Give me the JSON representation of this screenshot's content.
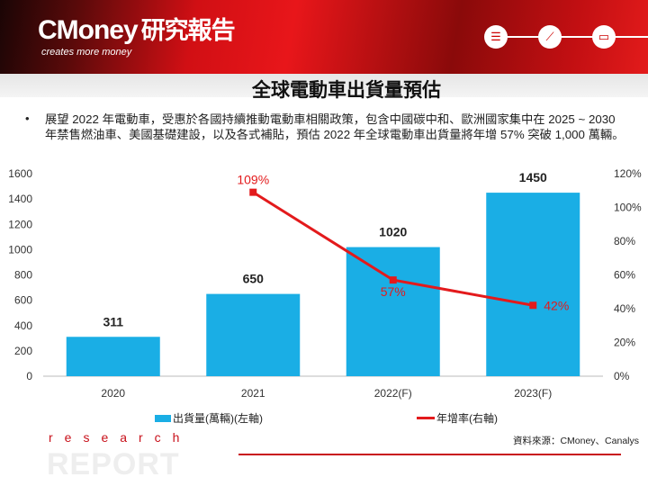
{
  "header": {
    "logo": "CMoney",
    "logo_zh": "研究報告",
    "tagline": "creates more money",
    "icons": [
      "report-icon",
      "trend-chart-icon",
      "monitor-chart-icon"
    ]
  },
  "title": "全球電動車出貨量預估",
  "bullet": "•",
  "paragraph": "展望 2022 年電動車，受惠於各國持續推動電動車相關政策，包含中國碳中和、歐洲國家集中在 2025 ~ 2030 年禁售燃油車、美國基礎建設，以及各式補貼，預估 2022 年全球電動車出貨量將年增 57% 突破 1,000 萬輛。",
  "source": "資料來源：CMoney、Canalys",
  "footer": {
    "research": "research",
    "report": "REPORT"
  },
  "colors": {
    "bar": "#1aaee5",
    "line": "#e31a1c"
  },
  "chart_data": {
    "type": "bar+line",
    "categories": [
      "2020",
      "2021",
      "2022(F)",
      "2023(F)"
    ],
    "series": [
      {
        "name": "出貨量(萬輛)(左軸)",
        "type": "bar",
        "axis": "left",
        "values": [
          311,
          650,
          1020,
          1450
        ],
        "labels": [
          "311",
          "650",
          "1020",
          "1450"
        ]
      },
      {
        "name": "年增率(右軸)",
        "type": "line",
        "axis": "right",
        "values": [
          null,
          109,
          57,
          42
        ],
        "labels": [
          "",
          "109%",
          "57%",
          "42%"
        ]
      }
    ],
    "ylim_left": [
      0,
      1600
    ],
    "yticks_left": [
      "0",
      "200",
      "400",
      "600",
      "800",
      "1000",
      "1200",
      "1400",
      "1600"
    ],
    "ylim_right": [
      0,
      120
    ],
    "yticks_right": [
      "0%",
      "20%",
      "40%",
      "60%",
      "80%",
      "100%",
      "120%"
    ],
    "legend_position": "bottom"
  }
}
